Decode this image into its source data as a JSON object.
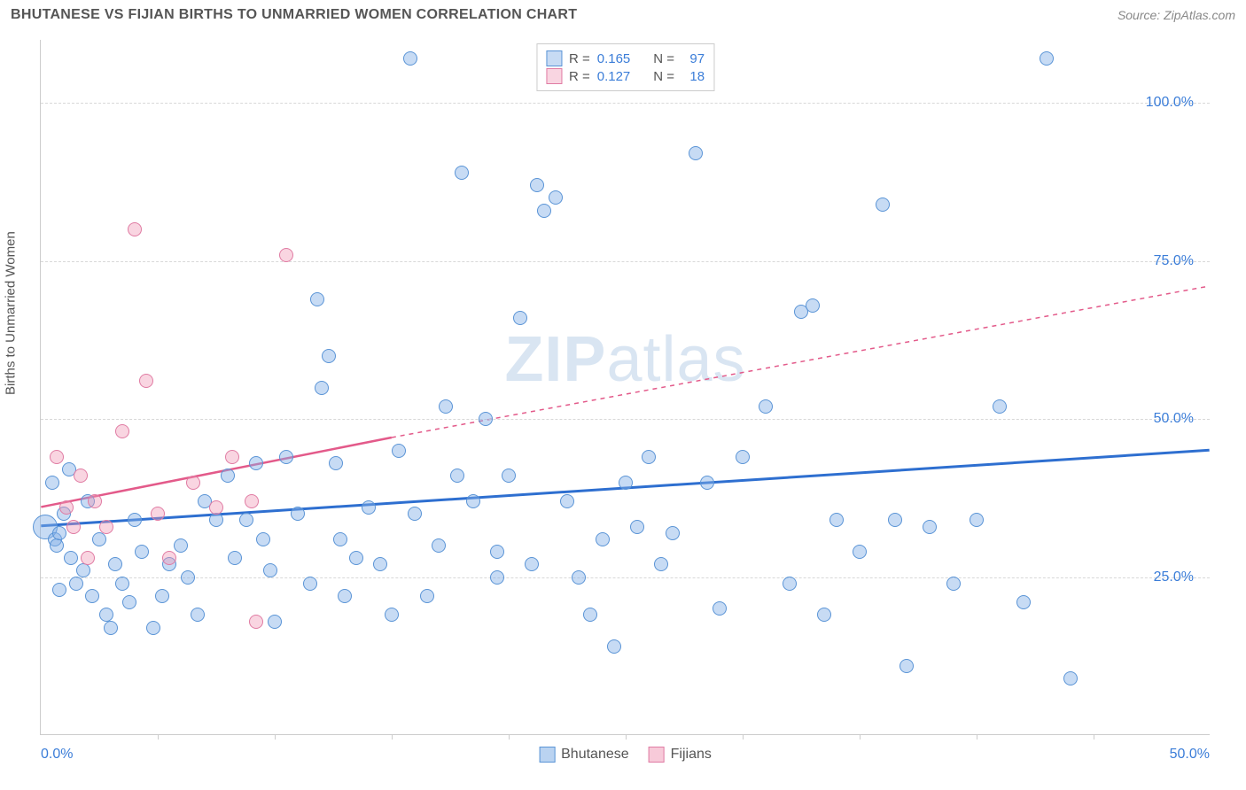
{
  "title": "BHUTANESE VS FIJIAN BIRTHS TO UNMARRIED WOMEN CORRELATION CHART",
  "source_label": "Source: ZipAtlas.com",
  "watermark_zip": "ZIP",
  "watermark_atlas": "atlas",
  "y_axis_label": "Births to Unmarried Women",
  "chart": {
    "type": "scatter",
    "background_color": "#ffffff",
    "grid_color": "#d8d8d8",
    "axis_color": "#cccccc",
    "label_color": "#555555",
    "value_color": "#3b7dd8",
    "xlim": [
      0,
      50
    ],
    "ylim": [
      0,
      110
    ],
    "ytick_values": [
      25,
      50,
      75,
      100
    ],
    "ytick_labels": [
      "25.0%",
      "50.0%",
      "75.0%",
      "100.0%"
    ],
    "xtick_values": [
      0,
      50
    ],
    "xtick_labels": [
      "0.0%",
      "50.0%"
    ],
    "xtick_marks": [
      5,
      10,
      15,
      20,
      25,
      30,
      35,
      40,
      45
    ],
    "marker_radius": 8,
    "marker_radius_large": 14,
    "series": [
      {
        "name": "Bhutanese",
        "fill_color": "rgba(130,175,230,0.45)",
        "stroke_color": "#5a94d6",
        "trend_color": "#2e6fd0",
        "trend_width": 3,
        "trend": {
          "x1": 0,
          "y1": 33,
          "x2": 50,
          "y2": 45
        },
        "stats": {
          "R_label": "R =",
          "R_value": "0.165",
          "N_label": "N =",
          "N_value": "97"
        },
        "points": [
          [
            0.2,
            33,
            14
          ],
          [
            0.5,
            40,
            8
          ],
          [
            0.6,
            31,
            8
          ],
          [
            0.7,
            30,
            8
          ],
          [
            0.8,
            32,
            8
          ],
          [
            0.8,
            23,
            8
          ],
          [
            1.0,
            35,
            8
          ],
          [
            1.2,
            42,
            8
          ],
          [
            1.3,
            28,
            8
          ],
          [
            1.5,
            24,
            8
          ],
          [
            1.8,
            26,
            8
          ],
          [
            2.0,
            37,
            8
          ],
          [
            2.2,
            22,
            8
          ],
          [
            2.5,
            31,
            8
          ],
          [
            2.8,
            19,
            8
          ],
          [
            3.0,
            17,
            8
          ],
          [
            3.2,
            27,
            8
          ],
          [
            3.5,
            24,
            8
          ],
          [
            3.8,
            21,
            8
          ],
          [
            4.0,
            34,
            8
          ],
          [
            4.3,
            29,
            8
          ],
          [
            4.8,
            17,
            8
          ],
          [
            5.2,
            22,
            8
          ],
          [
            5.5,
            27,
            8
          ],
          [
            6,
            30,
            8
          ],
          [
            6.3,
            25,
            8
          ],
          [
            6.7,
            19,
            8
          ],
          [
            7.0,
            37,
            8
          ],
          [
            7.5,
            34,
            8
          ],
          [
            8,
            41,
            8
          ],
          [
            8.3,
            28,
            8
          ],
          [
            8.8,
            34,
            8
          ],
          [
            9.2,
            43,
            8
          ],
          [
            9.5,
            31,
            8
          ],
          [
            9.8,
            26,
            8
          ],
          [
            10,
            18,
            8
          ],
          [
            10.5,
            44,
            8
          ],
          [
            11,
            35,
            8
          ],
          [
            11.5,
            24,
            8
          ],
          [
            11.8,
            69,
            8
          ],
          [
            12,
            55,
            8
          ],
          [
            12.3,
            60,
            8
          ],
          [
            12.6,
            43,
            8
          ],
          [
            12.8,
            31,
            8
          ],
          [
            13,
            22,
            8
          ],
          [
            13.5,
            28,
            8
          ],
          [
            14,
            36,
            8
          ],
          [
            14.5,
            27,
            8
          ],
          [
            15,
            19,
            8
          ],
          [
            15.3,
            45,
            8
          ],
          [
            15.8,
            107,
            8
          ],
          [
            16,
            35,
            8
          ],
          [
            16.5,
            22,
            8
          ],
          [
            17,
            30,
            8
          ],
          [
            17.3,
            52,
            8
          ],
          [
            17.8,
            41,
            8
          ],
          [
            18,
            89,
            8
          ],
          [
            18.5,
            37,
            8
          ],
          [
            19,
            50,
            8
          ],
          [
            19.5,
            25,
            8
          ],
          [
            19.5,
            29,
            8
          ],
          [
            20,
            41,
            8
          ],
          [
            20.5,
            66,
            8
          ],
          [
            21,
            27,
            8
          ],
          [
            21.5,
            83,
            8
          ],
          [
            21.2,
            87,
            8
          ],
          [
            22,
            85,
            8
          ],
          [
            22.5,
            37,
            8
          ],
          [
            23,
            25,
            8
          ],
          [
            23.5,
            19,
            8
          ],
          [
            24,
            31,
            8
          ],
          [
            24.5,
            14,
            8
          ],
          [
            25,
            40,
            8
          ],
          [
            25.5,
            33,
            8
          ],
          [
            26,
            44,
            8
          ],
          [
            26.5,
            27,
            8
          ],
          [
            27,
            32,
            8
          ],
          [
            28,
            92,
            8
          ],
          [
            28.5,
            40,
            8
          ],
          [
            29,
            20,
            8
          ],
          [
            30,
            44,
            8
          ],
          [
            31,
            52,
            8
          ],
          [
            32,
            24,
            8
          ],
          [
            32.5,
            67,
            8
          ],
          [
            33,
            68,
            8
          ],
          [
            33.5,
            19,
            8
          ],
          [
            34,
            34,
            8
          ],
          [
            35,
            29,
            8
          ],
          [
            36,
            84,
            8
          ],
          [
            36.5,
            34,
            8
          ],
          [
            37,
            11,
            8
          ],
          [
            38,
            33,
            8
          ],
          [
            39,
            24,
            8
          ],
          [
            40,
            34,
            8
          ],
          [
            41,
            52,
            8
          ],
          [
            42,
            21,
            8
          ],
          [
            43,
            107,
            8
          ],
          [
            44,
            9,
            8
          ]
        ]
      },
      {
        "name": "Fijians",
        "fill_color": "rgba(240,150,180,0.40)",
        "stroke_color": "#e07ba3",
        "trend_color": "#e35a8a",
        "trend_width": 2.5,
        "trend": {
          "x1": 0,
          "y1": 36,
          "x2": 15,
          "y2": 47
        },
        "trend_dash": {
          "x1": 15,
          "y1": 47,
          "x2": 50,
          "y2": 71
        },
        "stats": {
          "R_label": "R =",
          "R_value": "0.127",
          "N_label": "N =",
          "N_value": "18"
        },
        "points": [
          [
            0.7,
            44,
            8
          ],
          [
            1.1,
            36,
            8
          ],
          [
            1.4,
            33,
            8
          ],
          [
            1.7,
            41,
            8
          ],
          [
            2.0,
            28,
            8
          ],
          [
            2.3,
            37,
            8
          ],
          [
            2.8,
            33,
            8
          ],
          [
            3.5,
            48,
            8
          ],
          [
            4.0,
            80,
            8
          ],
          [
            4.5,
            56,
            8
          ],
          [
            5.0,
            35,
            8
          ],
          [
            5.5,
            28,
            8
          ],
          [
            6.5,
            40,
            8
          ],
          [
            7.5,
            36,
            8
          ],
          [
            8.2,
            44,
            8
          ],
          [
            9.0,
            37,
            8
          ],
          [
            9.2,
            18,
            8
          ],
          [
            10.5,
            76,
            8
          ]
        ]
      }
    ],
    "bottom_legend": [
      {
        "label": "Bhutanese",
        "fill": "rgba(130,175,230,0.55)",
        "stroke": "#5a94d6"
      },
      {
        "label": "Fijians",
        "fill": "rgba(240,150,180,0.50)",
        "stroke": "#e07ba3"
      }
    ]
  }
}
